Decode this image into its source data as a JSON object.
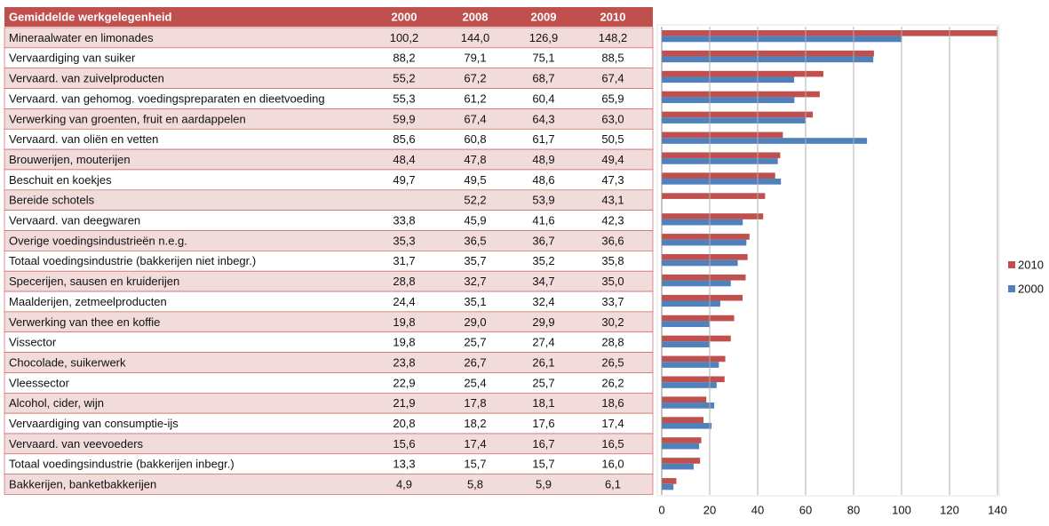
{
  "table": {
    "header": [
      "Gemiddelde werkgelegenheid",
      "2000",
      "2008",
      "2009",
      "2010"
    ],
    "rows": [
      [
        "Mineraalwater en limonades",
        "100,2",
        "144,0",
        "126,9",
        "148,2"
      ],
      [
        "Vervaardiging van suiker",
        "88,2",
        "79,1",
        "75,1",
        "88,5"
      ],
      [
        "Vervaard. van zuivelproducten",
        "55,2",
        "67,2",
        "68,7",
        "67,4"
      ],
      [
        "Vervaard. van gehomog. voedingspreparaten en dieetvoeding",
        "55,3",
        "61,2",
        "60,4",
        "65,9"
      ],
      [
        "Verwerking van groenten, fruit en aardappelen",
        "59,9",
        "67,4",
        "64,3",
        "63,0"
      ],
      [
        "Vervaard. van oliën en vetten",
        "85,6",
        "60,8",
        "61,7",
        "50,5"
      ],
      [
        "Brouwerijen, mouterijen",
        "48,4",
        "47,8",
        "48,9",
        "49,4"
      ],
      [
        "Beschuit en koekjes",
        "49,7",
        "49,5",
        "48,6",
        "47,3"
      ],
      [
        "Bereide schotels",
        null,
        "52,2",
        "53,9",
        "43,1"
      ],
      [
        "Vervaard. van deegwaren",
        "33,8",
        "45,9",
        "41,6",
        "42,3"
      ],
      [
        "Overige voedingsindustrieën n.e.g.",
        "35,3",
        "36,5",
        "36,7",
        "36,6"
      ],
      [
        "Totaal voedingsindustrie (bakkerijen niet inbegr.)",
        "31,7",
        "35,7",
        "35,2",
        "35,8"
      ],
      [
        "Specerijen, sausen en kruiderijen",
        "28,8",
        "32,7",
        "34,7",
        "35,0"
      ],
      [
        "Maalderijen, zetmeelproducten",
        "24,4",
        "35,1",
        "32,4",
        "33,7"
      ],
      [
        "Verwerking van thee en koffie",
        "19,8",
        "29,0",
        "29,9",
        "30,2"
      ],
      [
        "Vissector",
        "19,8",
        "25,7",
        "27,4",
        "28,8"
      ],
      [
        "Chocolade, suikerwerk",
        "23,8",
        "26,7",
        "26,1",
        "26,5"
      ],
      [
        "Vleessector",
        "22,9",
        "25,4",
        "25,7",
        "26,2"
      ],
      [
        "Alcohol, cider, wijn",
        "21,9",
        "17,8",
        "18,1",
        "18,6"
      ],
      [
        "Vervaardiging van consumptie-ijs",
        "20,8",
        "18,2",
        "17,6",
        "17,4"
      ],
      [
        "Vervaard. van veevoeders",
        "15,6",
        "17,4",
        "16,7",
        "16,5"
      ],
      [
        "Totaal voedingsindustrie (bakkerijen inbegr.)",
        "13,3",
        "15,7",
        "15,7",
        "16,0"
      ],
      [
        "Bakkerijen, banketbakkerijen",
        "4,9",
        "5,8",
        "5,9",
        "6,1"
      ]
    ]
  },
  "chart_data": {
    "type": "hbar",
    "series": [
      {
        "name": "2010",
        "color": "#c0504d",
        "values": [
          148.2,
          88.5,
          67.4,
          65.9,
          63.0,
          50.5,
          49.4,
          47.3,
          43.1,
          42.3,
          36.6,
          35.8,
          35.0,
          33.7,
          30.2,
          28.8,
          26.5,
          26.2,
          18.6,
          17.4,
          16.5,
          16.0,
          6.1
        ]
      },
      {
        "name": "2000",
        "color": "#4f81bd",
        "values": [
          100.2,
          88.2,
          55.2,
          55.3,
          59.9,
          85.6,
          48.4,
          49.7,
          null,
          33.8,
          35.3,
          31.7,
          28.8,
          24.4,
          19.8,
          19.8,
          23.8,
          22.9,
          21.9,
          20.8,
          15.6,
          13.3,
          4.9
        ]
      }
    ],
    "xlim": [
      0,
      140
    ],
    "xticks": [
      0,
      20,
      40,
      60,
      80,
      100,
      120,
      140
    ],
    "grid": true,
    "legend": "right"
  }
}
